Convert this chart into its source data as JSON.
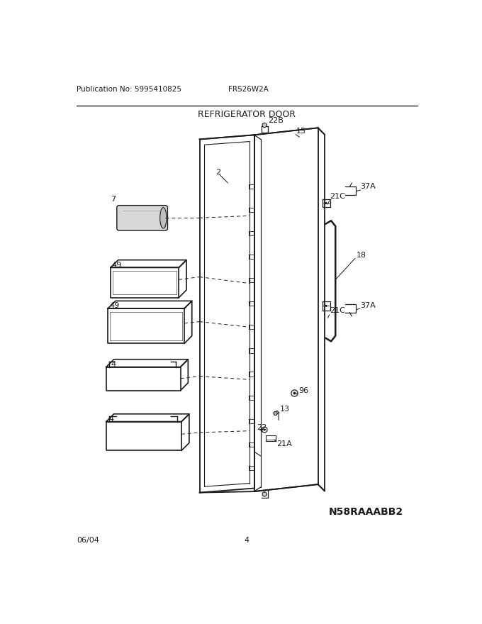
{
  "title": "REFRIGERATOR DOOR",
  "pub_no": "Publication No: 5995410825",
  "model": "FRS26W2A",
  "diagram_id": "N58RAAABB2",
  "date": "06/04",
  "page": "4",
  "bg_color": "#ffffff",
  "line_color": "#1a1a1a"
}
